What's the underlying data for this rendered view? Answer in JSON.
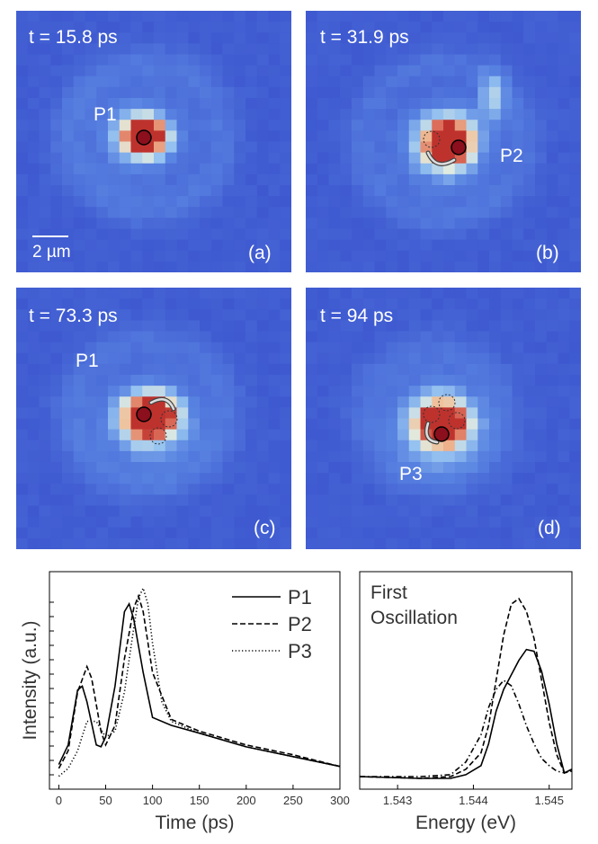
{
  "panels": [
    {
      "time_label": "t = 15.8 ps",
      "letter": "(a)",
      "point_labels": [
        {
          "text": "P1"
        }
      ],
      "scale_bar": "2 µm"
    },
    {
      "time_label": "t = 31.9 ps",
      "letter": "(b)",
      "point_labels": [
        {
          "text": "P2"
        }
      ]
    },
    {
      "time_label": "t = 73.3 ps",
      "letter": "(c)",
      "point_labels": [
        {
          "text": "P1"
        }
      ]
    },
    {
      "time_label": "t = 94 ps",
      "letter": "(d)",
      "point_labels": [
        {
          "text": "P3"
        }
      ]
    }
  ],
  "colors": {
    "background_blue": "#3d55cf",
    "hot_red": "#c83c30",
    "marker": "#8b0f1d"
  },
  "chart_data": [
    {
      "type": "line",
      "xlabel": "Time (ps)",
      "ylabel": "Intensity (a.u.)",
      "xlim": [
        -10,
        300
      ],
      "xticks": [
        0,
        50,
        100,
        150,
        200,
        250,
        300
      ],
      "legend_position": "top-right",
      "series": [
        {
          "name": "P1",
          "style": "solid",
          "x": [
            0,
            10,
            20,
            25,
            30,
            40,
            45,
            50,
            60,
            70,
            75,
            80,
            90,
            100,
            120,
            150,
            200,
            250,
            300
          ],
          "y": [
            0.08,
            0.18,
            0.46,
            0.48,
            0.4,
            0.18,
            0.17,
            0.22,
            0.48,
            0.86,
            0.9,
            0.82,
            0.55,
            0.32,
            0.28,
            0.24,
            0.17,
            0.12,
            0.07
          ]
        },
        {
          "name": "P2",
          "style": "dashed",
          "x": [
            0,
            10,
            20,
            30,
            35,
            45,
            50,
            60,
            70,
            80,
            85,
            90,
            100,
            120,
            150,
            200,
            250,
            300
          ],
          "y": [
            0.06,
            0.15,
            0.45,
            0.58,
            0.52,
            0.25,
            0.18,
            0.28,
            0.62,
            0.88,
            0.94,
            0.86,
            0.55,
            0.31,
            0.25,
            0.18,
            0.13,
            0.07
          ]
        },
        {
          "name": "P3",
          "style": "dotted",
          "x": [
            0,
            10,
            20,
            30,
            40,
            50,
            60,
            70,
            80,
            85,
            90,
            95,
            100,
            110,
            120,
            150,
            200,
            250,
            300
          ],
          "y": [
            0.02,
            0.06,
            0.15,
            0.3,
            0.3,
            0.22,
            0.25,
            0.45,
            0.78,
            0.93,
            0.98,
            0.9,
            0.7,
            0.4,
            0.3,
            0.24,
            0.17,
            0.12,
            0.07
          ]
        }
      ]
    },
    {
      "type": "line",
      "xlabel": "Energy (eV)",
      "xlim": [
        1.5425,
        1.5453
      ],
      "xticks": [
        1.543,
        1.544,
        1.545
      ],
      "annotation": "First Oscillation",
      "series": [
        {
          "style": "solid",
          "x": [
            1.5425,
            1.5433,
            1.5437,
            1.5439,
            1.5441,
            1.5442,
            1.5443,
            1.5444,
            1.5445,
            1.5446,
            1.5447,
            1.5448,
            1.5449,
            1.545,
            1.5451,
            1.5452,
            1.5453
          ],
          "y": [
            0.02,
            0.01,
            0.01,
            0.03,
            0.08,
            0.2,
            0.38,
            0.5,
            0.58,
            0.66,
            0.72,
            0.71,
            0.6,
            0.42,
            0.2,
            0.04,
            0.06
          ]
        },
        {
          "style": "dashed",
          "x": [
            1.5425,
            1.5433,
            1.5437,
            1.5439,
            1.5441,
            1.5442,
            1.5443,
            1.5444,
            1.5445,
            1.5446,
            1.5447,
            1.5448,
            1.5449,
            1.545,
            1.5451,
            1.5452,
            1.5453
          ],
          "y": [
            0.02,
            0.01,
            0.02,
            0.06,
            0.15,
            0.3,
            0.55,
            0.8,
            0.97,
            1.0,
            0.93,
            0.78,
            0.55,
            0.32,
            0.14,
            0.04,
            0.06
          ]
        },
        {
          "style": "dashdot",
          "x": [
            1.5425,
            1.5433,
            1.5437,
            1.5439,
            1.5441,
            1.5442,
            1.5443,
            1.5444,
            1.5445,
            1.5446,
            1.5447,
            1.5448,
            1.5449,
            1.545,
            1.5451,
            1.5452,
            1.5453
          ],
          "y": [
            0.02,
            0.02,
            0.03,
            0.1,
            0.25,
            0.4,
            0.5,
            0.55,
            0.52,
            0.42,
            0.3,
            0.2,
            0.12,
            0.08,
            0.05,
            0.04,
            0.05
          ]
        }
      ]
    }
  ]
}
